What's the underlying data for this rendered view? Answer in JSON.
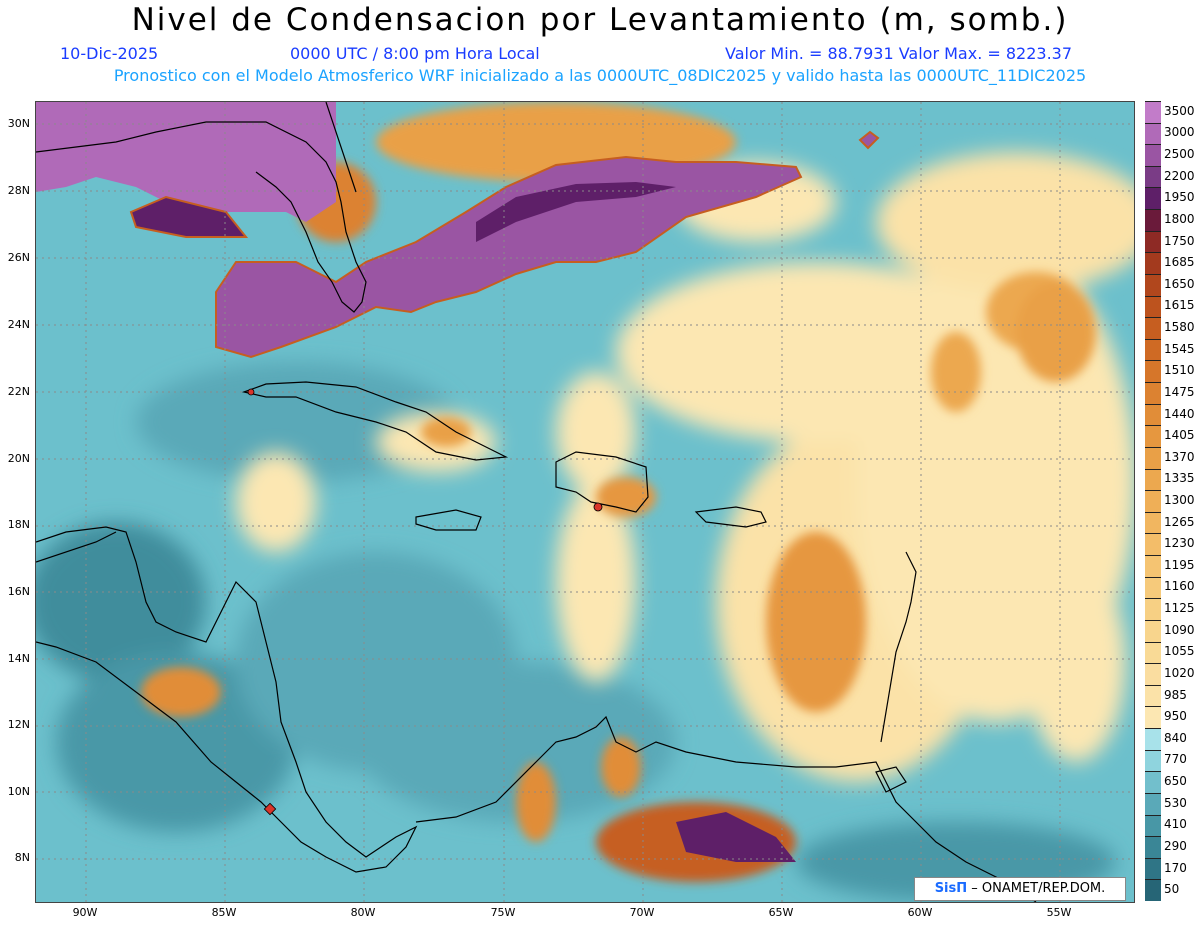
{
  "header": {
    "title": "Nivel de Condensacion por Levantamiento (m, somb.)",
    "date": "10-Dic-2025",
    "time": "0000 UTC / 8:00 pm Hora Local",
    "min_max": "Valor Min. = 88.7931  Valor Max. = 8223.37",
    "model_info": "Pronostico con el Modelo Atmosferico WRF inicializado a las 0000UTC_08DIC2025 y valido hasta las  0000UTC_11DIC2025"
  },
  "axes": {
    "lat_labels": [
      "30N",
      "28N",
      "26N",
      "24N",
      "22N",
      "20N",
      "18N",
      "16N",
      "14N",
      "12N",
      "10N",
      "8N"
    ],
    "lon_labels": [
      "90W",
      "85W",
      "80W",
      "75W",
      "70W",
      "65W",
      "60W",
      "55W"
    ]
  },
  "colorbar": {
    "labels": [
      "3500",
      "3000",
      "2500",
      "2200",
      "1950",
      "1800",
      "1750",
      "1685",
      "1650",
      "1615",
      "1580",
      "1545",
      "1510",
      "1475",
      "1440",
      "1405",
      "1370",
      "1335",
      "1300",
      "1265",
      "1230",
      "1195",
      "1160",
      "1125",
      "1090",
      "1055",
      "1020",
      "985",
      "950",
      "840",
      "770",
      "650",
      "530",
      "410",
      "290",
      "170",
      "50"
    ],
    "colors": [
      "#c27cc9",
      "#b06ab8",
      "#9a55a3",
      "#7a3c86",
      "#5e1f68",
      "#6a1a3a",
      "#8e2a25",
      "#a33a1e",
      "#b1471d",
      "#bd531e",
      "#c65e20",
      "#cf6a24",
      "#d6762a",
      "#dc8231",
      "#e18d38",
      "#e6973f",
      "#e9a047",
      "#eca84f",
      "#efaf57",
      "#f1b660",
      "#f3bd69",
      "#f5c472",
      "#f6ca7b",
      "#f7d084",
      "#f8d58d",
      "#f9da96",
      "#faddA0",
      "#fbe2a8",
      "#fce7b2",
      "#a8e2ea",
      "#8fd4de",
      "#72bfcc",
      "#5aa9b8",
      "#4897a6",
      "#3a8696",
      "#2f7586",
      "#266576"
    ]
  },
  "credit": {
    "brand": "SisΠ",
    "text": "– ONAMET/REP.DOM."
  },
  "colors": {
    "background_cyan": "#5eb4c2",
    "title": "#000000",
    "subtitle_blue": "#1a3cff",
    "subtitle_cyan": "#1ba3ff"
  }
}
